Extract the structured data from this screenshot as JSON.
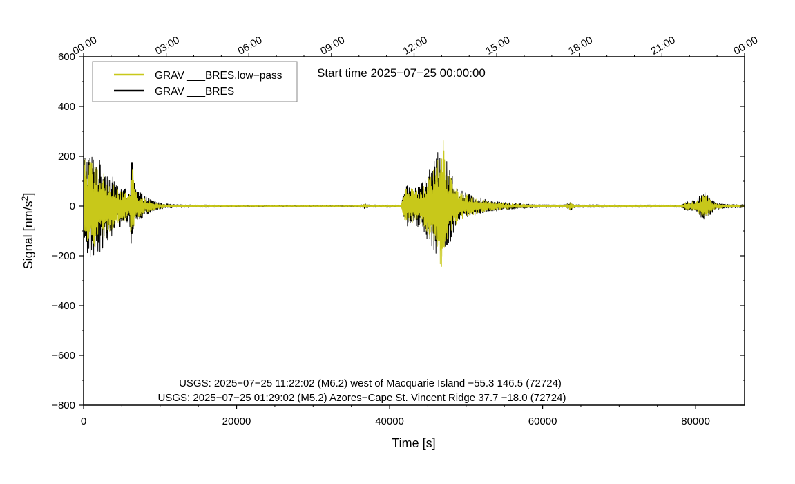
{
  "chart_data": {
    "type": "line",
    "xlabel": "Time [s]",
    "ylabel_main": "Signal [nm/s",
    "ylabel_sup": "2",
    "ylabel_end": "]",
    "xlim": [
      0,
      86400
    ],
    "ylim": [
      -800,
      600
    ],
    "x_ticks": [
      0,
      20000,
      40000,
      60000,
      80000
    ],
    "x_tick_labels": [
      "0",
      "20000",
      "40000",
      "60000",
      "80000"
    ],
    "y_ticks": [
      600,
      400,
      200,
      0,
      -200,
      -400,
      -600,
      -800
    ],
    "y_tick_labels": [
      "600",
      "400",
      "200",
      "0",
      "−200",
      "−400",
      "−600",
      "−800"
    ],
    "top_ticks": [
      0,
      10800,
      21600,
      32400,
      43200,
      54000,
      64800,
      75600,
      86400
    ],
    "top_tick_labels": [
      "00:00",
      "03:00",
      "06:00",
      "09:00",
      "12:00",
      "15:00",
      "18:00",
      "21:00",
      "00:00"
    ],
    "start_time": "Start time 2025−07−25 00:00:00",
    "legend_position": "top-left",
    "annotations": [
      "USGS: 2025−07−25 11:22:02 (M6.2) west of Macquarie Island −55.3 146.5 (72724)",
      "USGS: 2025−07−25 01:29:02 (M5.2) Azores−Cape St. Vincent Ridge 37.7 −18.0 (72724)"
    ],
    "series": [
      {
        "name": "GRAV ___BRES",
        "color": "#000000",
        "envelope": [
          [
            0,
            220
          ],
          [
            1500,
            210
          ],
          [
            3000,
            150
          ],
          [
            4500,
            90
          ],
          [
            6000,
            60
          ],
          [
            6300,
            220
          ],
          [
            6700,
            80
          ],
          [
            8000,
            40
          ],
          [
            10000,
            12
          ],
          [
            12000,
            6
          ],
          [
            20000,
            4
          ],
          [
            30000,
            4
          ],
          [
            36000,
            4
          ],
          [
            36700,
            10
          ],
          [
            37500,
            5
          ],
          [
            41500,
            5
          ],
          [
            42000,
            80
          ],
          [
            44000,
            90
          ],
          [
            45500,
            160
          ],
          [
            46500,
            230
          ],
          [
            47500,
            180
          ],
          [
            49000,
            70
          ],
          [
            51000,
            40
          ],
          [
            53000,
            25
          ],
          [
            56000,
            12
          ],
          [
            60000,
            6
          ],
          [
            63000,
            6
          ],
          [
            63600,
            20
          ],
          [
            64200,
            6
          ],
          [
            70000,
            5
          ],
          [
            78000,
            5
          ],
          [
            78500,
            15
          ],
          [
            80000,
            25
          ],
          [
            81200,
            60
          ],
          [
            82500,
            15
          ],
          [
            84000,
            8
          ],
          [
            86400,
            6
          ]
        ]
      },
      {
        "name": "GRAV ___BRES.low−pass",
        "color": "#c8c81a",
        "envelope": [
          [
            0,
            200
          ],
          [
            1500,
            180
          ],
          [
            3000,
            120
          ],
          [
            4500,
            70
          ],
          [
            6000,
            50
          ],
          [
            6300,
            180
          ],
          [
            6700,
            60
          ],
          [
            8000,
            30
          ],
          [
            10000,
            9
          ],
          [
            12000,
            5
          ],
          [
            20000,
            3
          ],
          [
            30000,
            3
          ],
          [
            36000,
            3
          ],
          [
            36700,
            8
          ],
          [
            37500,
            4
          ],
          [
            41500,
            4
          ],
          [
            42000,
            70
          ],
          [
            44000,
            70
          ],
          [
            45500,
            140
          ],
          [
            46500,
            200
          ],
          [
            46900,
            320
          ],
          [
            47500,
            150
          ],
          [
            49000,
            60
          ],
          [
            51000,
            35
          ],
          [
            53000,
            20
          ],
          [
            56000,
            10
          ],
          [
            60000,
            5
          ],
          [
            63000,
            5
          ],
          [
            63600,
            15
          ],
          [
            64200,
            5
          ],
          [
            70000,
            4
          ],
          [
            78000,
            4
          ],
          [
            78500,
            12
          ],
          [
            80000,
            20
          ],
          [
            81200,
            50
          ],
          [
            82500,
            12
          ],
          [
            84000,
            6
          ],
          [
            86400,
            5
          ]
        ]
      }
    ]
  }
}
